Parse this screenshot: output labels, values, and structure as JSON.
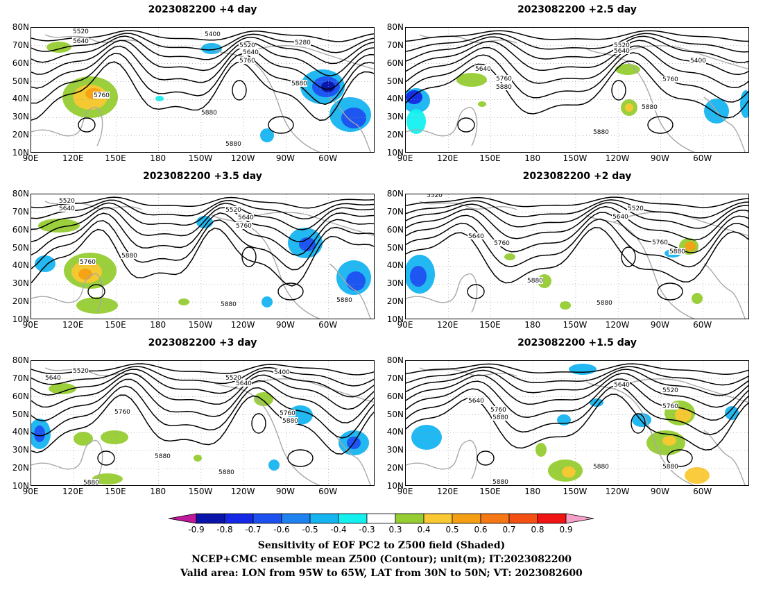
{
  "panels": [
    {
      "title": "2023082200  +4 day"
    },
    {
      "title": "2023082200  +2.5 day"
    },
    {
      "title": "2023082200  +3.5 day"
    },
    {
      "title": "2023082200  +2 day"
    },
    {
      "title": "2023082200  +3 day"
    },
    {
      "title": "2023082200  +1.5 day"
    }
  ],
  "lat_ticks": [
    "80N",
    "70N",
    "60N",
    "50N",
    "40N",
    "30N",
    "20N",
    "10N"
  ],
  "lon_ticks": [
    "90E",
    "120E",
    "150E",
    "180",
    "150W",
    "120W",
    "90W",
    "60W"
  ],
  "colorbar": {
    "labels": [
      "-0.9",
      "-0.8",
      "-0.7",
      "-0.6",
      "-0.5",
      "-0.4",
      "-0.3",
      "0.3",
      "0.4",
      "0.5",
      "0.6",
      "0.7",
      "0.8",
      "0.9"
    ],
    "colors": [
      "#c0189a",
      "#0a14a8",
      "#1428e6",
      "#1e50f0",
      "#1e82f0",
      "#16b4f0",
      "#14f0f0",
      "#ffffff",
      "#96cd32",
      "#fac832",
      "#f5a014",
      "#f57814",
      "#f55014",
      "#f01414",
      "#f5a0c8"
    ]
  },
  "contour_labels": [
    "5280",
    "5400",
    "5520",
    "5640",
    "5760",
    "5880"
  ],
  "caption": {
    "line1": "Sensitivity of EOF PC2 to Z500 field (Shaded)",
    "line2": "NCEP+CMC ensemble mean Z500 (Contour); unit(m); IT:2023082200",
    "line3": "Valid area: LON from 95W to 65W, LAT from 30N to 50N; VT: 2023082600"
  }
}
